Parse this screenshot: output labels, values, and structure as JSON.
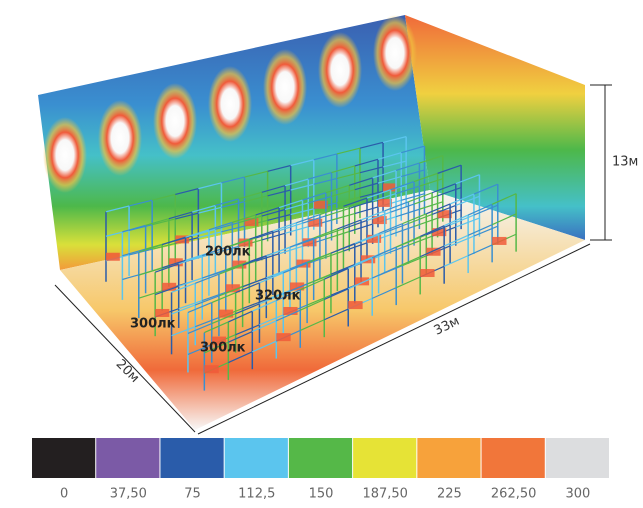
{
  "illuminance_labels": [
    "200лк",
    "320лк",
    "300лк",
    "300лк"
  ],
  "dimensions": {
    "height": "13м",
    "length": "33м",
    "width": "20м"
  },
  "scale": {
    "colors": [
      "#231f20",
      "#7b5aa6",
      "#2a5caa",
      "#5bc5ee",
      "#55b848",
      "#e6e336",
      "#f7a23b",
      "#f1763a",
      "#dcdddf"
    ],
    "labels": [
      "0",
      "37,50",
      "75",
      "112,5",
      "150",
      "187,50",
      "225",
      "262,50",
      "300"
    ]
  }
}
